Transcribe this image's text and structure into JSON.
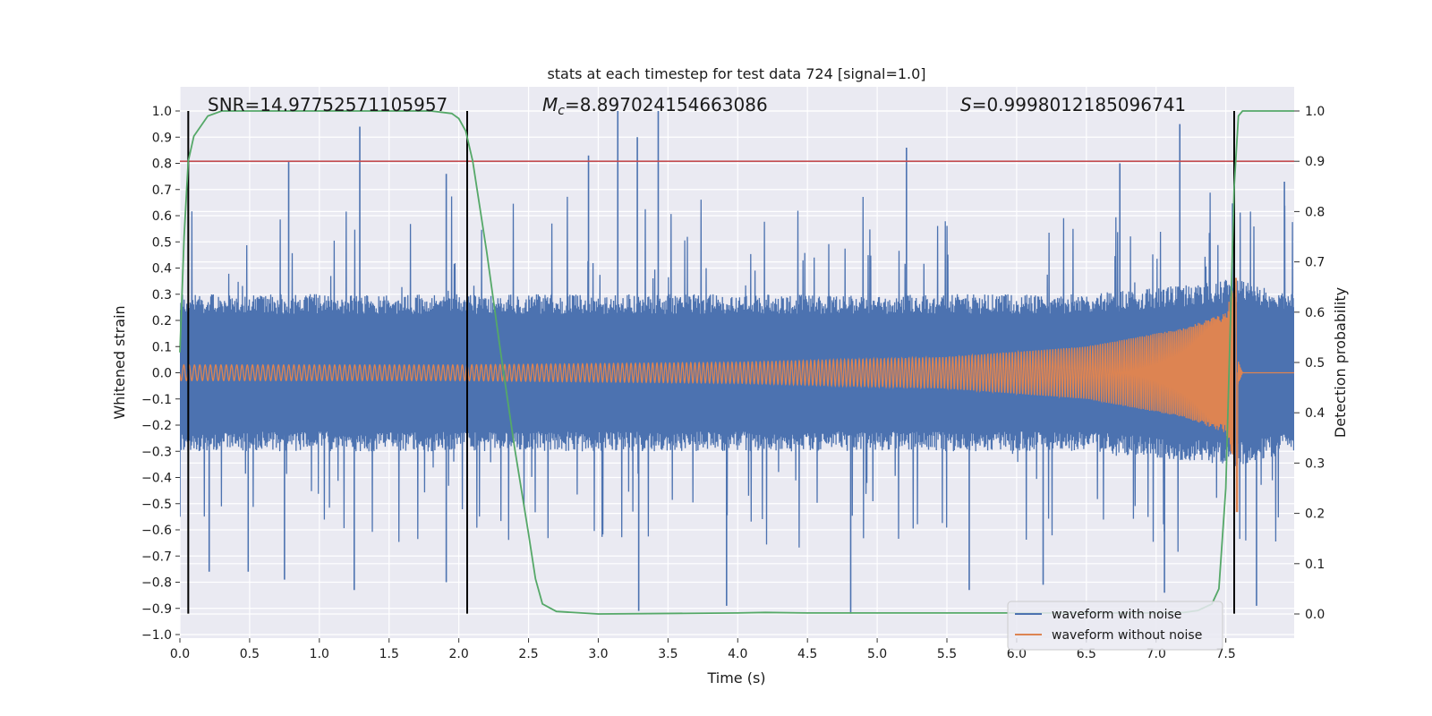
{
  "chart_data": {
    "type": "line",
    "title": "stats at each timestep for test data 724 [signal=1.0]",
    "xlabel": "Time (s)",
    "ylabel": "Whitened strain",
    "ylabel_right": "Detection probability",
    "xlim": [
      0.0,
      7.99
    ],
    "ylim": [
      -1.0,
      1.0
    ],
    "ylim_right": [
      0.0,
      1.0
    ],
    "x_ticks": [
      0.0,
      0.5,
      1.0,
      1.5,
      2.0,
      2.5,
      3.0,
      3.5,
      4.0,
      4.5,
      5.0,
      5.5,
      6.0,
      6.5,
      7.0,
      7.5
    ],
    "x_tick_labels": [
      "0.0",
      "0.5",
      "1.0",
      "1.5",
      "2.0",
      "2.5",
      "3.0",
      "3.5",
      "4.0",
      "4.5",
      "5.0",
      "5.5",
      "6.0",
      "6.5",
      "7.0",
      "7.5"
    ],
    "y_ticks": [
      1.0,
      0.9,
      0.8,
      0.7,
      0.6,
      0.5,
      0.4,
      0.3,
      0.2,
      0.1,
      0.0,
      -0.1,
      -0.2,
      -0.3,
      -0.4,
      -0.5,
      -0.6,
      -0.7,
      -0.8,
      -0.9,
      -1.0
    ],
    "y_tick_labels": [
      "1.0",
      "0.9",
      "0.8",
      "0.7",
      "0.6",
      "0.5",
      "0.4",
      "0.3",
      "0.2",
      "0.1",
      "0.0",
      "−0.1",
      "−0.2",
      "−0.3",
      "−0.4",
      "−0.5",
      "−0.6",
      "−0.7",
      "−0.8",
      "−0.9",
      "−1.0"
    ],
    "y_right_ticks": [
      1.0,
      0.9,
      0.8,
      0.7,
      0.6,
      0.5,
      0.4,
      0.3,
      0.2,
      0.1,
      0.0
    ],
    "y_right_tick_labels": [
      "1.0",
      "0.9",
      "0.8",
      "0.7",
      "0.6",
      "0.5",
      "0.4",
      "0.3",
      "0.2",
      "0.1",
      "0.0"
    ],
    "grid": true,
    "annotations": {
      "snr": "SNR=14.97752571105957",
      "mc_symbol": "M",
      "mc_sub": "c",
      "mc_value": "=8.897024154663086",
      "s_symbol": "S",
      "s_value": "=0.9998012185096741"
    },
    "threshold_line": {
      "axis": "right",
      "value": 0.9,
      "color": "#c44e52"
    },
    "vertical_markers": {
      "x": [
        0.06,
        2.06,
        7.56
      ],
      "ymin": -0.92,
      "ymax": 1.0,
      "color": "#000000"
    },
    "series": [
      {
        "name": "waveform with noise",
        "color": "#4c72b0",
        "axis": "left",
        "style": "dense noise",
        "base_envelope": [
          [
            0.0,
            0.3
          ],
          [
            6.5,
            0.3
          ],
          [
            7.3,
            0.34
          ],
          [
            7.56,
            0.36
          ],
          [
            7.99,
            0.3
          ]
        ],
        "spikes": [
          {
            "x": 1.29,
            "y": 0.94
          },
          {
            "x": 1.91,
            "y": 0.76
          },
          {
            "x": 0.78,
            "y": 0.81
          },
          {
            "x": 2.93,
            "y": 0.83
          },
          {
            "x": 3.14,
            "y": 1.0
          },
          {
            "x": 3.43,
            "y": 1.0
          },
          {
            "x": 3.28,
            "y": 0.9
          },
          {
            "x": 5.21,
            "y": 0.86
          },
          {
            "x": 6.74,
            "y": 0.8
          },
          {
            "x": 7.17,
            "y": 0.95
          },
          {
            "x": 7.92,
            "y": 0.73
          },
          {
            "x": 0.21,
            "y": -0.76
          },
          {
            "x": 0.49,
            "y": -0.76
          },
          {
            "x": 0.75,
            "y": -0.79
          },
          {
            "x": 1.25,
            "y": -0.83
          },
          {
            "x": 1.91,
            "y": -0.8
          },
          {
            "x": 3.29,
            "y": -0.91
          },
          {
            "x": 3.92,
            "y": -0.89
          },
          {
            "x": 4.81,
            "y": -0.92
          },
          {
            "x": 5.66,
            "y": -0.83
          },
          {
            "x": 6.19,
            "y": -0.81
          },
          {
            "x": 7.06,
            "y": -0.84
          },
          {
            "x": 7.72,
            "y": -0.89
          },
          {
            "x": 0.0,
            "y": -0.55
          }
        ]
      },
      {
        "name": "waveform without noise",
        "color": "#dd8452",
        "axis": "left",
        "style": "chirp",
        "amplitude_envelope": [
          [
            0.0,
            0.03
          ],
          [
            2.0,
            0.03
          ],
          [
            4.0,
            0.04
          ],
          [
            5.5,
            0.06
          ],
          [
            6.5,
            0.1
          ],
          [
            7.2,
            0.17
          ],
          [
            7.5,
            0.23
          ],
          [
            7.57,
            0.36
          ],
          [
            7.59,
            -0.53
          ],
          [
            7.62,
            0.0
          ]
        ],
        "merger_time": 7.58
      },
      {
        "name": "detection probability",
        "color": "#55a868",
        "axis": "right",
        "x": [
          0.0,
          0.03,
          0.06,
          0.1,
          0.15,
          0.2,
          0.3,
          0.4,
          0.6,
          1.0,
          1.5,
          1.8,
          1.95,
          2.0,
          2.05,
          2.1,
          2.2,
          2.3,
          2.4,
          2.5,
          2.55,
          2.6,
          2.7,
          3.0,
          4.0,
          4.2,
          4.5,
          5.0,
          6.0,
          7.0,
          7.2,
          7.3,
          7.4,
          7.45,
          7.5,
          7.53,
          7.56,
          7.59,
          7.62,
          7.7,
          7.99
        ],
        "y": [
          0.52,
          0.75,
          0.9,
          0.95,
          0.97,
          0.99,
          1.0,
          1.0,
          1.0,
          1.0,
          1.0,
          1.0,
          0.995,
          0.985,
          0.96,
          0.9,
          0.72,
          0.52,
          0.33,
          0.16,
          0.07,
          0.02,
          0.005,
          0.0,
          0.002,
          0.003,
          0.002,
          0.002,
          0.002,
          0.002,
          0.003,
          0.007,
          0.02,
          0.05,
          0.25,
          0.55,
          0.85,
          0.99,
          1.0,
          1.0,
          1.0
        ]
      }
    ],
    "legend": {
      "placement": "bottom-right",
      "entries": [
        {
          "label": "waveform with noise",
          "color": "#4c72b0"
        },
        {
          "label": "waveform without noise",
          "color": "#dd8452"
        }
      ]
    }
  }
}
